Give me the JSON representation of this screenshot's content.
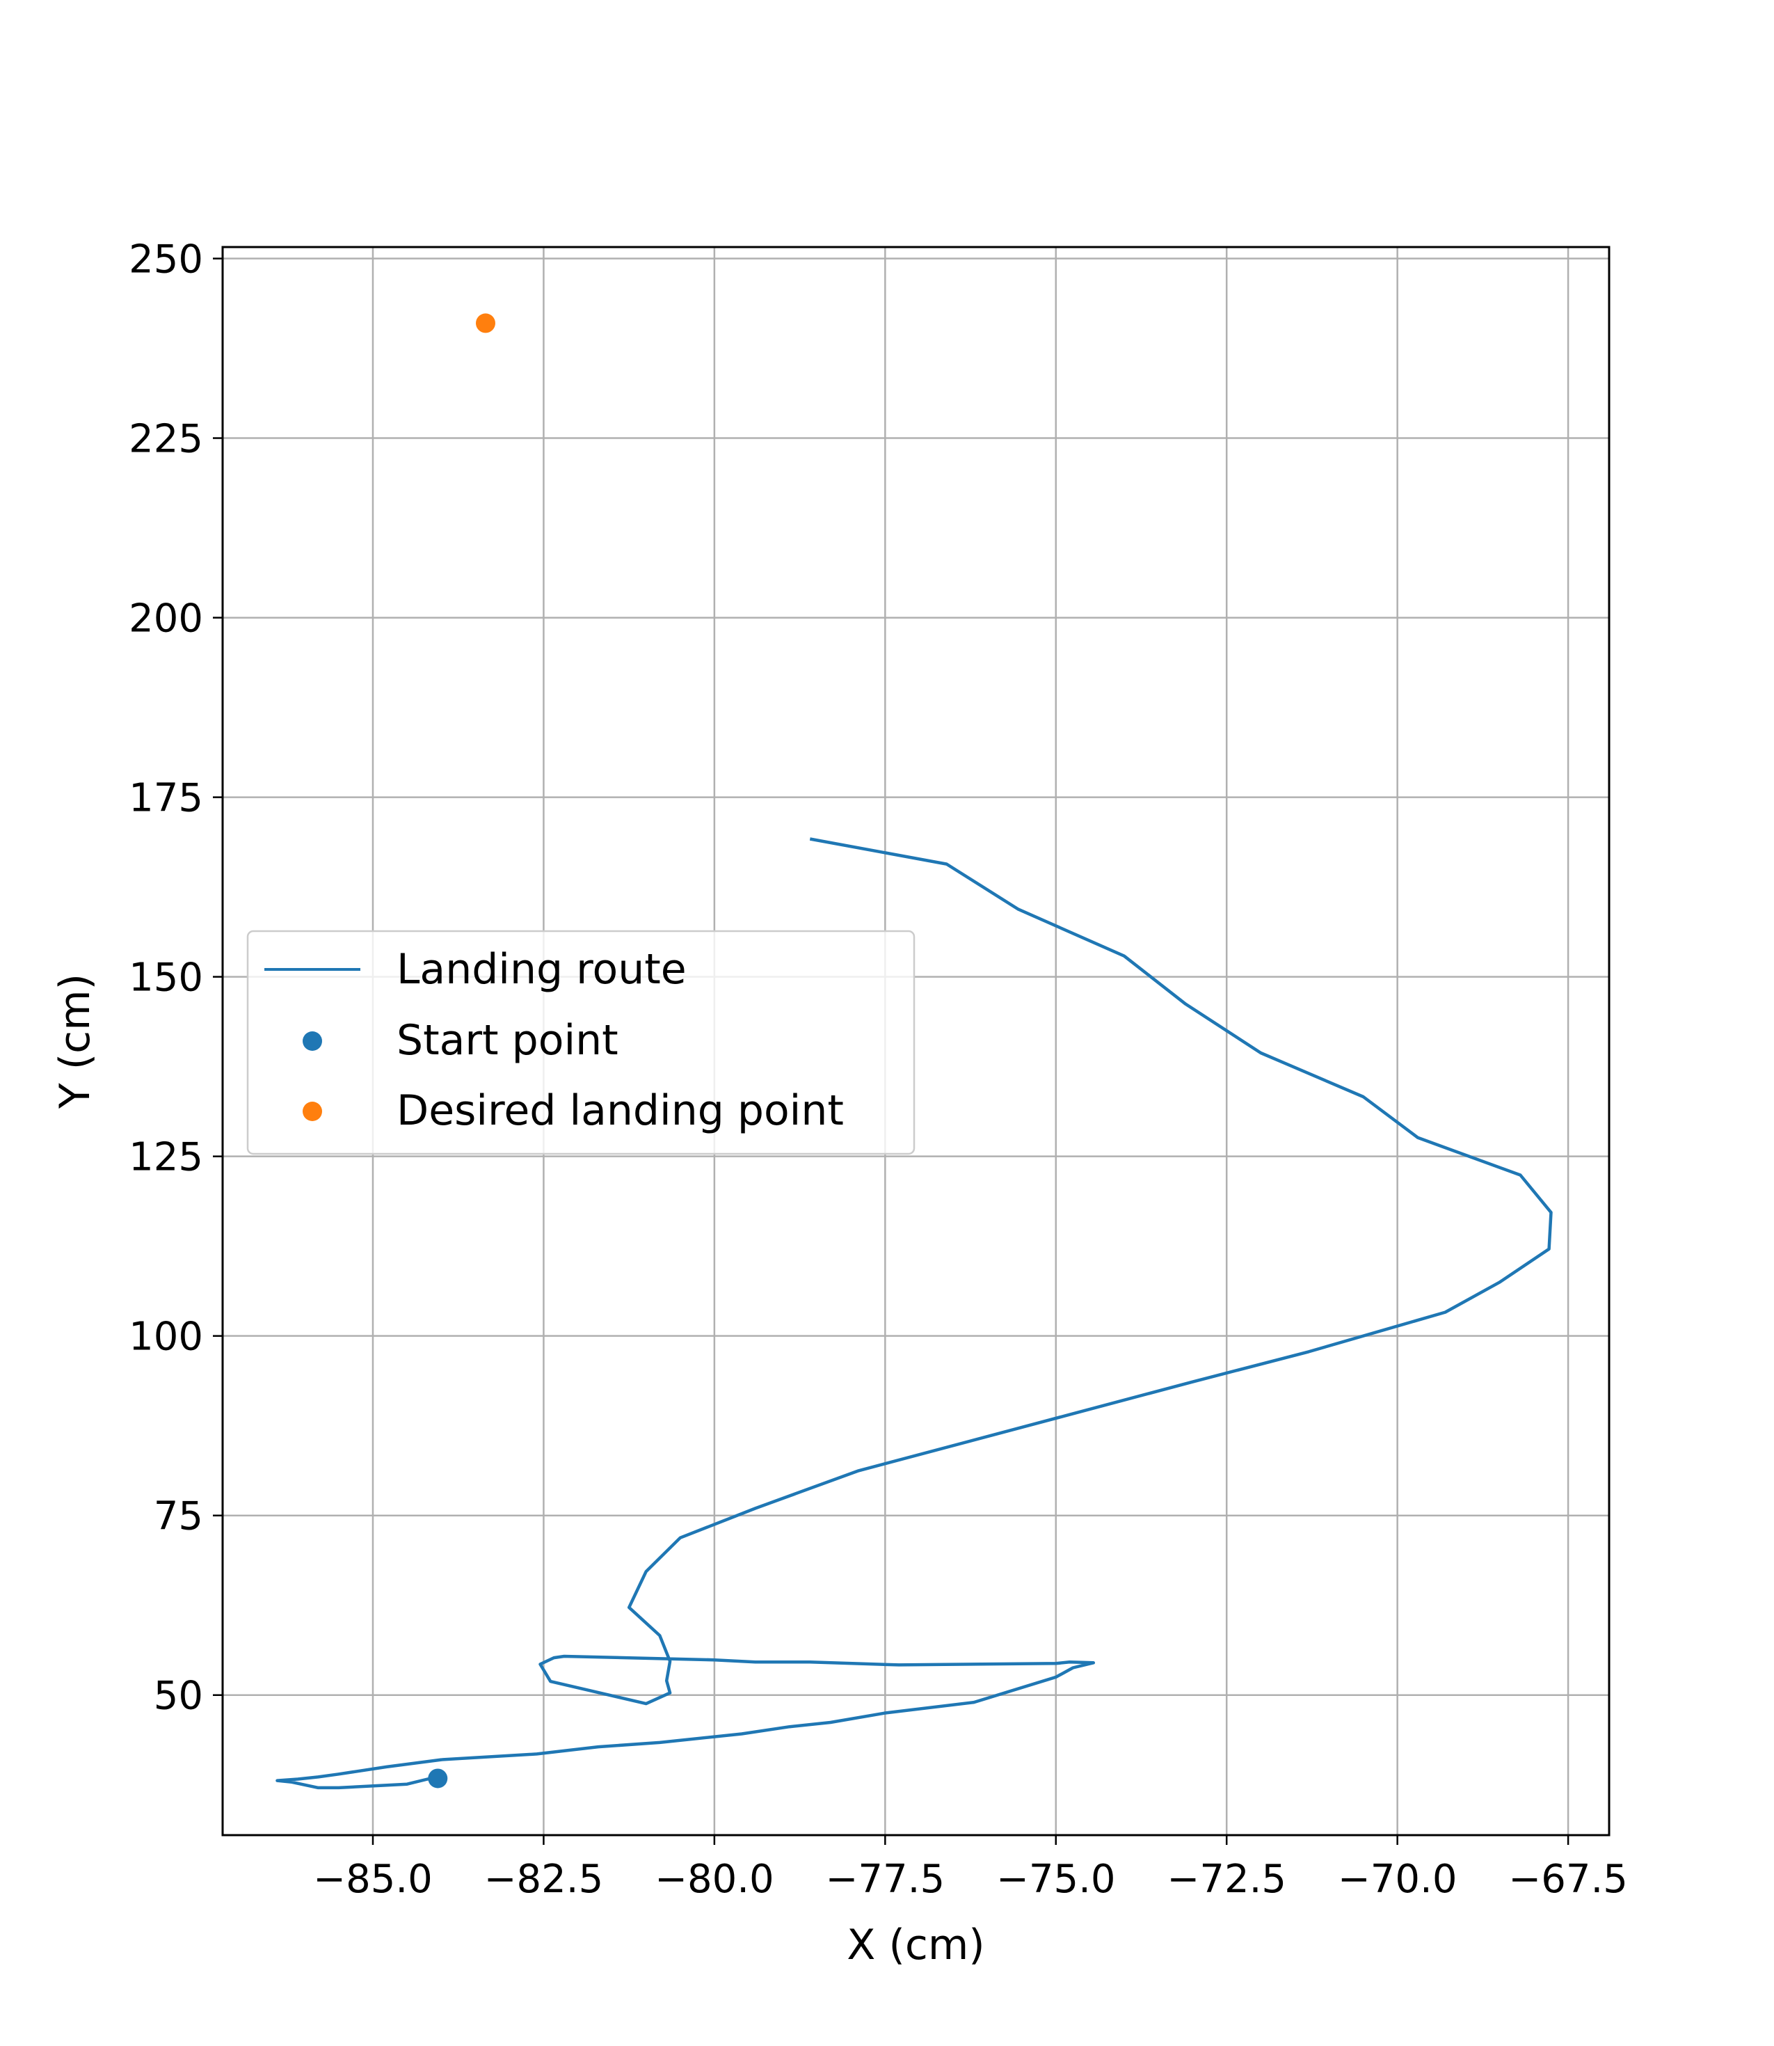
{
  "chart_data": {
    "type": "line",
    "title": "",
    "xlabel": "X (cm)",
    "ylabel": "Y (cm)",
    "xlim": [
      -87.2,
      -66.9
    ],
    "ylim": [
      30.5,
      251.6
    ],
    "xticks": [
      -85.0,
      -82.5,
      -80.0,
      -77.5,
      -75.0,
      -72.5,
      -70.0,
      -67.5
    ],
    "xtick_labels": [
      "−85.0",
      "−82.5",
      "−80.0",
      "−77.5",
      "−75.0",
      "−72.5",
      "−70.0",
      "−67.5"
    ],
    "yticks": [
      50,
      75,
      100,
      125,
      150,
      175,
      200,
      225,
      250
    ],
    "ytick_labels": [
      "50",
      "75",
      "100",
      "125",
      "150",
      "175",
      "200",
      "225",
      "250"
    ],
    "grid": true,
    "legend_position": "center-left",
    "series": [
      {
        "name": "Landing route",
        "kind": "line",
        "color": "#1f77b4",
        "x": [
          -78.6,
          -76.6,
          -75.55,
          -74.0,
          -73.1,
          -72.0,
          -70.5,
          -69.7,
          -68.2,
          -67.75,
          -67.78,
          -68.5,
          -69.3,
          -71.3,
          -73.0,
          -77.9,
          -79.4,
          -80.5,
          -81.0,
          -81.25,
          -80.8,
          -80.65,
          -80.7,
          -80.65,
          -81.0,
          -82.4,
          -82.55,
          -82.35,
          -82.2,
          -80.0,
          -79.4,
          -78.6,
          -77.3,
          -75.0,
          -74.8,
          -74.45,
          -74.75,
          -75.0,
          -76.2,
          -77.5,
          -78.3,
          -78.9,
          -79.6,
          -80.8,
          -81.7,
          -82.6,
          -84.0,
          -84.8,
          -85.5,
          -85.8,
          -86.1,
          -86.4,
          -86.2,
          -85.8,
          -85.5,
          -84.5,
          -84.2,
          -84.05
        ],
        "y": [
          169.2,
          165.7,
          159.4,
          152.9,
          146.2,
          139.4,
          133.3,
          127.6,
          122.4,
          117.2,
          112.1,
          107.5,
          103.3,
          97.8,
          93.6,
          81.2,
          76.0,
          71.9,
          67.2,
          62.2,
          58.3,
          54.7,
          52.0,
          50.3,
          48.8,
          51.9,
          54.3,
          55.2,
          55.4,
          54.9,
          54.6,
          54.6,
          54.2,
          54.4,
          54.6,
          54.5,
          53.8,
          52.5,
          49.0,
          47.5,
          46.2,
          45.6,
          44.6,
          43.4,
          42.8,
          41.8,
          41.0,
          40.0,
          39.0,
          38.6,
          38.3,
          38.1,
          37.9,
          37.1,
          37.1,
          37.6,
          38.3,
          38.4
        ]
      },
      {
        "name": "Start point",
        "kind": "point",
        "color": "#1f77b4",
        "x": [
          -84.05
        ],
        "y": [
          38.4
        ]
      },
      {
        "name": "Desired landing point",
        "kind": "point",
        "color": "#ff7f0e",
        "x": [
          -83.35
        ],
        "y": [
          241.0
        ]
      }
    ]
  }
}
